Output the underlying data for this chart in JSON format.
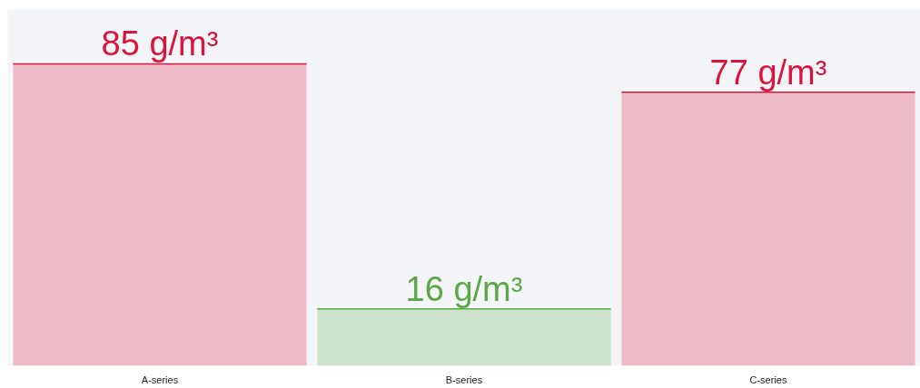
{
  "chart_data": {
    "type": "bar",
    "categories": [
      "A-series",
      "B-series",
      "C-series"
    ],
    "values": [
      85,
      16,
      77
    ],
    "colors": [
      "#dc143c",
      "#5aa846",
      "#dc143c"
    ],
    "value_labels": [
      "85 g/m³",
      "16 g/m³",
      "77 g/m³"
    ],
    "grid": false
  }
}
